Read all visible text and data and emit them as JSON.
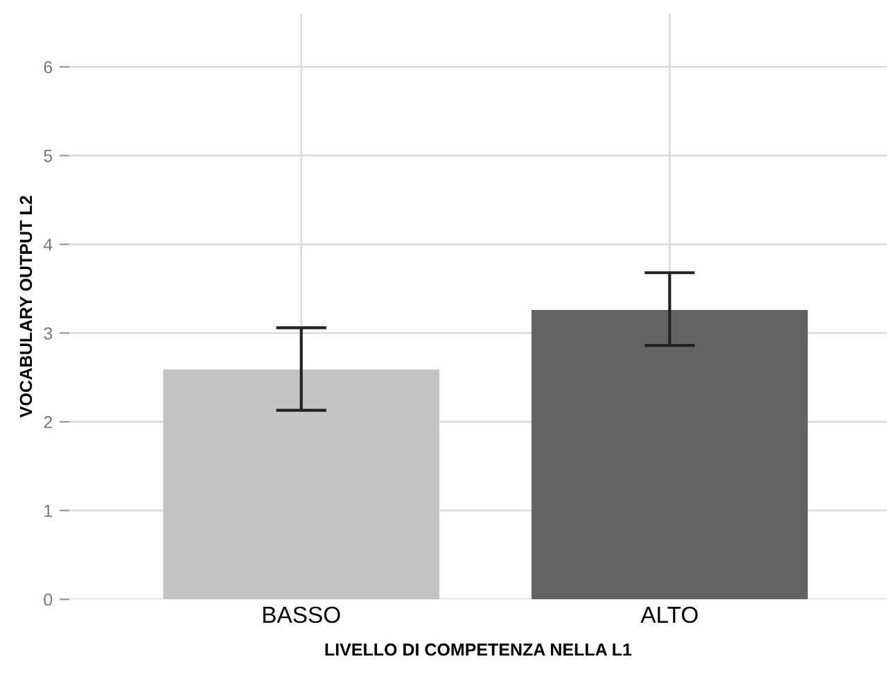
{
  "chart_data": {
    "type": "bar",
    "xlabel": "LIVELLO DI COMPETENZA NELLA L1",
    "ylabel": "VOCABULARY OUTPUT L2",
    "categories": [
      "BASSO",
      "ALTO"
    ],
    "values": [
      2.59,
      3.26
    ],
    "colors": [
      "#c4c4c4",
      "#636363"
    ],
    "errors": [
      [
        2.13,
        3.06
      ],
      [
        2.86,
        3.68
      ]
    ],
    "ylim": [
      0,
      6.6
    ],
    "yticks": [
      0,
      1,
      2,
      3,
      4,
      5,
      6
    ],
    "grid": true
  }
}
